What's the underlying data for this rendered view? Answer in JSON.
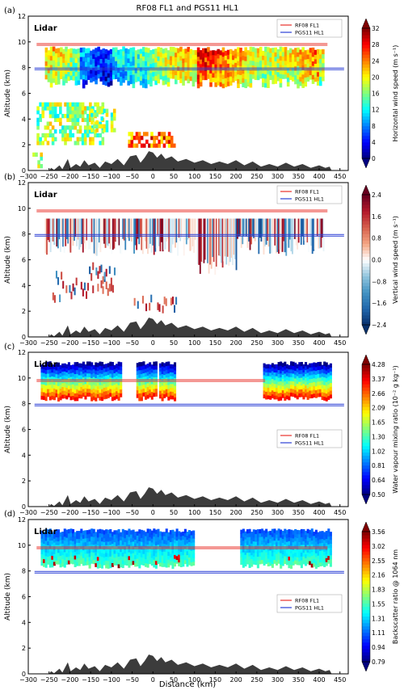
{
  "figure": {
    "title": "RF08 FL1 and PGS11 HL1",
    "xlabel": "Distance (km)"
  },
  "colors": {
    "rf08_line": "#e8302a",
    "pgs11_line": "#2a3fd6",
    "terrain": "#3c3c3c",
    "axis": "#000000",
    "colormap_jet": [
      "#00007f",
      "#0000ff",
      "#007fff",
      "#00ffff",
      "#7fff7f",
      "#ffff00",
      "#ff7f00",
      "#ff0000",
      "#7f0000"
    ],
    "colormap_bwr": [
      "#08306b",
      "#2166ac",
      "#4393c3",
      "#92c5de",
      "#ffffff",
      "#f4a582",
      "#d6604d",
      "#b2182b",
      "#67001f"
    ]
  },
  "chart_data": [
    {
      "type": "heatmap",
      "panel_label": "(a)",
      "instrument_label": "Lidar",
      "xlabel": "",
      "ylabel": "Altitude (km)",
      "xlim": [
        -300,
        470
      ],
      "ylim": [
        0,
        12
      ],
      "xticks": [
        -300,
        -250,
        -200,
        -150,
        -100,
        -50,
        0,
        50,
        100,
        150,
        200,
        250,
        300,
        350,
        400,
        450
      ],
      "yticks": [
        0,
        2,
        4,
        6,
        8,
        10,
        12
      ],
      "legend": [
        "RF08 FL1",
        "PGS11 HL1"
      ],
      "colorbar": {
        "label": "Horizontal wind speed (m s⁻¹)",
        "ticks": [
          "0",
          "4",
          "8",
          "12",
          "16",
          "20",
          "24",
          "28",
          "32"
        ],
        "colormap": "jet",
        "extend": true
      },
      "flight_tracks": [
        {
          "name": "RF08 FL1",
          "altitude_km": 9.8,
          "x_range": [
            -280,
            420
          ]
        },
        {
          "name": "PGS11 HL1",
          "altitude_km": 7.9,
          "x_range": [
            -285,
            460
          ]
        }
      ]
    },
    {
      "type": "heatmap",
      "panel_label": "(b)",
      "instrument_label": "Lidar",
      "xlabel": "",
      "ylabel": "Altitude (km)",
      "xlim": [
        -300,
        470
      ],
      "ylim": [
        0,
        12
      ],
      "xticks": [
        -300,
        -250,
        -200,
        -150,
        -100,
        -50,
        0,
        50,
        100,
        150,
        200,
        250,
        300,
        350,
        400,
        450
      ],
      "yticks": [
        0,
        2,
        4,
        6,
        8,
        10,
        12
      ],
      "legend": [
        "RF08 FL1",
        "PGS11 HL1"
      ],
      "colorbar": {
        "label": "Vertical wind speed (m s⁻¹)",
        "ticks": [
          "-2.4",
          "-1.6",
          "-0.8",
          "0.0",
          "0.8",
          "1.6",
          "2.4"
        ],
        "colormap": "bwr",
        "extend": true
      },
      "flight_tracks": [
        {
          "name": "RF08 FL1",
          "altitude_km": 9.8,
          "x_range": [
            -280,
            420
          ]
        },
        {
          "name": "PGS11 HL1",
          "altitude_km": 7.9,
          "x_range": [
            -285,
            460
          ]
        }
      ]
    },
    {
      "type": "heatmap",
      "panel_label": "(c)",
      "instrument_label": "Lidar",
      "xlabel": "",
      "ylabel": "Altitude (km)",
      "xlim": [
        -300,
        470
      ],
      "ylim": [
        0,
        12
      ],
      "xticks": [
        -300,
        -250,
        -200,
        -150,
        -100,
        -50,
        0,
        50,
        100,
        150,
        200,
        250,
        300,
        350,
        400,
        450
      ],
      "yticks": [
        0,
        2,
        4,
        6,
        8,
        10,
        12
      ],
      "legend": [
        "RF08 FL1",
        "PGS11 HL1"
      ],
      "colorbar": {
        "label": "Water vapour mixing ratio (10⁻² g kg⁻¹)",
        "ticks": [
          "0.50",
          "0.64",
          "0.81",
          "1.02",
          "1.30",
          "1.65",
          "2.09",
          "2.66",
          "3.37",
          "4.28"
        ],
        "colormap": "jet",
        "extend": true
      },
      "flight_tracks": [
        {
          "name": "RF08 FL1",
          "altitude_km": 9.8,
          "x_range": [
            -280,
            270
          ]
        },
        {
          "name": "PGS11 HL1",
          "altitude_km": 7.9,
          "x_range": [
            -285,
            460
          ]
        }
      ]
    },
    {
      "type": "heatmap",
      "panel_label": "(d)",
      "instrument_label": "Lidar",
      "xlabel": "Distance (km)",
      "ylabel": "Altitude (km)",
      "xlim": [
        -300,
        470
      ],
      "ylim": [
        0,
        12
      ],
      "xticks": [
        -300,
        -250,
        -200,
        -150,
        -100,
        -50,
        0,
        50,
        100,
        150,
        200,
        250,
        300,
        350,
        400,
        450
      ],
      "yticks": [
        0,
        2,
        4,
        6,
        8,
        10,
        12
      ],
      "legend": [
        "RF08 FL1",
        "PGS11 HL1"
      ],
      "colorbar": {
        "label": "Backscatter ratio @ 1064 nm",
        "ticks": [
          "0.79",
          "0.94",
          "1.11",
          "1.31",
          "1.55",
          "1.83",
          "2.16",
          "2.55",
          "3.02",
          "3.56"
        ],
        "colormap": "jet",
        "extend": true
      },
      "flight_tracks": [
        {
          "name": "RF08 FL1",
          "altitude_km": 9.8,
          "x_range": [
            -280,
            420
          ]
        },
        {
          "name": "PGS11 HL1",
          "altitude_km": 7.9,
          "x_range": [
            -285,
            460
          ]
        }
      ]
    }
  ]
}
